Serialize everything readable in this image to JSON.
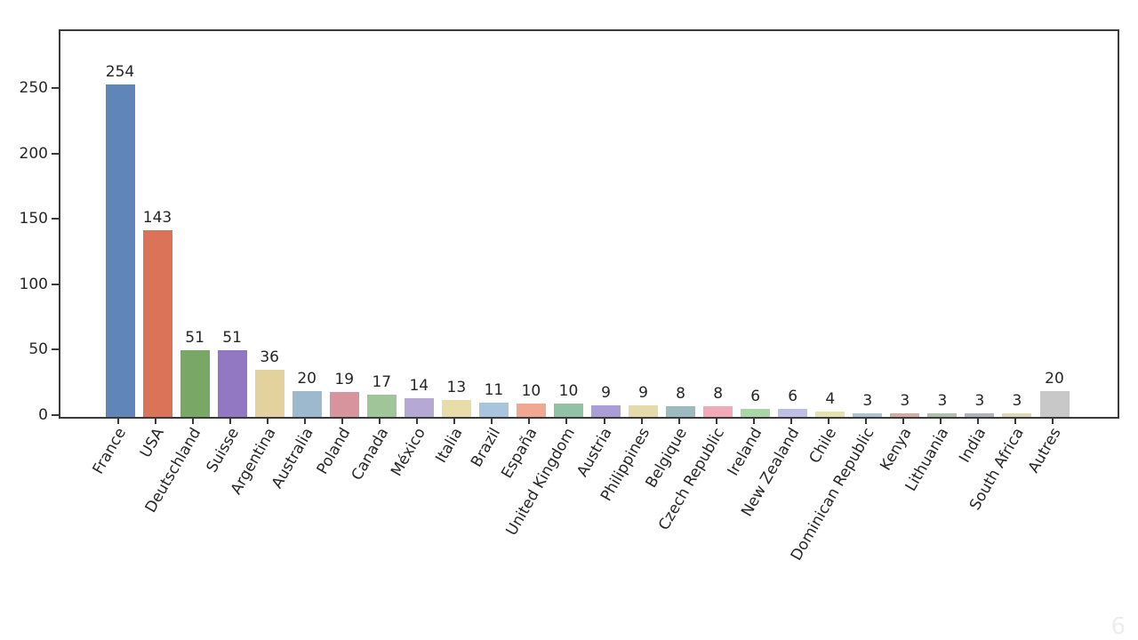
{
  "page": {
    "background": "#ffffff",
    "watermark": "6"
  },
  "chart_data": {
    "type": "bar",
    "title": "",
    "xlabel": "",
    "ylabel": "",
    "grid": false,
    "legend": null,
    "categories": [
      "France",
      "USA",
      "Deutschland",
      "Suisse",
      "Argentina",
      "Australia",
      "Poland",
      "Canada",
      "México",
      "Italia",
      "Brazil",
      "España",
      "United Kingdom",
      "Austria",
      "Philippines",
      "Belgique",
      "Czech Republic",
      "Ireland",
      "New Zealand",
      "Chile",
      "Dominican Republic",
      "Kenya",
      "Lithuania",
      "India",
      "South Africa",
      "Autres"
    ],
    "values": [
      254,
      143,
      51,
      51,
      36,
      20,
      19,
      17,
      14,
      13,
      11,
      10,
      10,
      9,
      9,
      8,
      8,
      6,
      6,
      4,
      3,
      3,
      3,
      3,
      3,
      20
    ],
    "bar_colors": [
      "#5F86B6",
      "#DB7358",
      "#79A766",
      "#9278C2",
      "#E4D29E",
      "#9CB9CD",
      "#D8949D",
      "#9FC599",
      "#B5A8D5",
      "#E8DCA9",
      "#A9C4DD",
      "#F0A892",
      "#93C1A5",
      "#AB9DD6",
      "#E5DAA9",
      "#9EBAC1",
      "#F2AAB8",
      "#A9D6A4",
      "#BFBFE6",
      "#E4E2AD",
      "#AAC3D4",
      "#DAA99E",
      "#AEBFAB",
      "#AFB2C1",
      "#DBD8B3",
      "#C8C8C8"
    ],
    "yticks": [
      0,
      50,
      100,
      150,
      200,
      250
    ],
    "ylim": [
      0,
      295
    ],
    "xtick_rotation_deg": 60,
    "axis_color": "#3a3a3a",
    "text_color": "#262626"
  }
}
